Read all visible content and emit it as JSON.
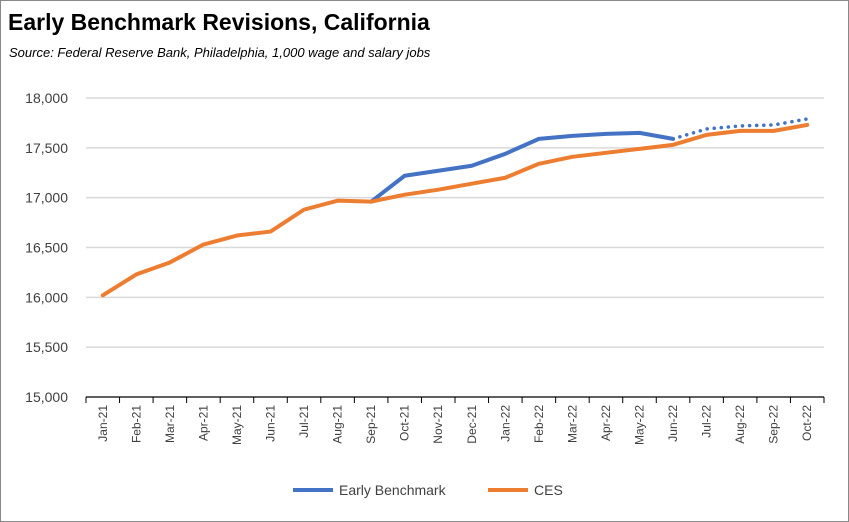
{
  "chart_data": {
    "type": "line",
    "title": "Early Benchmark Revisions, California",
    "subtitle": "Source:  Federal Reserve Bank, Philadelphia, 1,000 wage and salary jobs",
    "categories": [
      "Jan-21",
      "Feb-21",
      "Mar-21",
      "Apr-21",
      "May-21",
      "Jun-21",
      "Jul-21",
      "Aug-21",
      "Sep-21",
      "Oct-21",
      "Nov-21",
      "Dec-21",
      "Jan-22",
      "Feb-22",
      "Mar-22",
      "Apr-22",
      "May-22",
      "Jun-22",
      "Jul-22",
      "Aug-22",
      "Sep-22",
      "Oct-22"
    ],
    "ylim": [
      15000,
      18000
    ],
    "yticks": [
      15000,
      15500,
      16000,
      16500,
      17000,
      17500,
      18000
    ],
    "ytick_labels": [
      "15,000",
      "15,500",
      "16,000",
      "16,500",
      "17,000",
      "17,500",
      "18,000"
    ],
    "grid": true,
    "legend": "bottom",
    "series": [
      {
        "name": "Early Benchmark",
        "color": "#4472C4",
        "values": [
          16020,
          16230,
          16350,
          16530,
          16620,
          16660,
          16880,
          16970,
          16960,
          17220,
          17270,
          17320,
          17440,
          17590,
          17620,
          17640,
          17650,
          17590,
          17690,
          17720,
          17730,
          17790
        ],
        "dotted_from": "Jun-22"
      },
      {
        "name": "CES",
        "color": "#ED7D31",
        "values": [
          16020,
          16230,
          16350,
          16530,
          16620,
          16660,
          16880,
          16970,
          16960,
          17030,
          17080,
          17140,
          17200,
          17340,
          17410,
          17450,
          17490,
          17530,
          17630,
          17670,
          17670,
          17730
        ]
      }
    ]
  }
}
